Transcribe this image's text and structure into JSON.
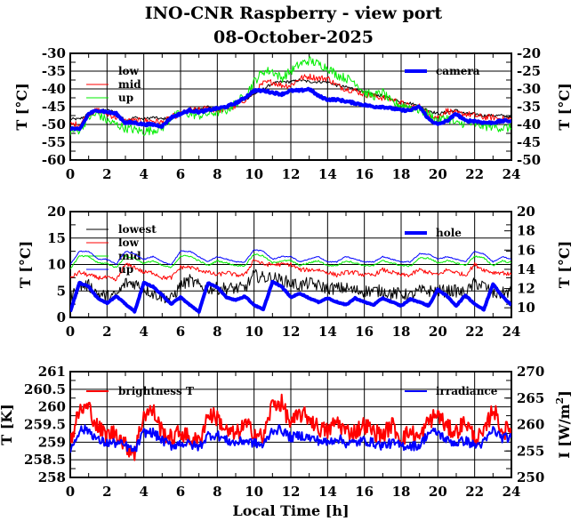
{
  "title": "INO-CNR Raspberry - view port",
  "subtitle": "08-October-2025",
  "chart_data": [
    {
      "type": "line",
      "ylabel": "T [°C]",
      "ylabel_right": "T [°C]",
      "ylim": [
        -60,
        -30
      ],
      "ylim_right": [
        -50,
        -20
      ],
      "yticks": [
        -60,
        -55,
        -50,
        -45,
        -40,
        -35,
        -30
      ],
      "yticks_right": [
        -50,
        -45,
        -40,
        -35,
        -30,
        -25,
        -20
      ],
      "xlim": [
        0,
        24
      ],
      "xticks": [
        0,
        2,
        4,
        6,
        8,
        10,
        12,
        14,
        16,
        18,
        20,
        22,
        24
      ],
      "x_step": 0.5,
      "grid": true,
      "series": [
        {
          "name": "low",
          "axis": "left",
          "color": "#000000",
          "width": 1,
          "noise": 0.4,
          "values": [
            -48.5,
            -48.5,
            -47,
            -46,
            -46,
            -46.5,
            -49,
            -48,
            -48.5,
            -48,
            -48.5,
            -48,
            -47,
            -46,
            -45.5,
            -45,
            -46,
            -45,
            -44.5,
            -43,
            -41.5,
            -40,
            -38.5,
            -38,
            -38,
            -37.5,
            -38,
            -38,
            -38,
            -39,
            -39.5,
            -40,
            -41,
            -41.5,
            -42,
            -43,
            -43.5,
            -44,
            -45,
            -46,
            -47,
            -46.5,
            -46,
            -47,
            -47,
            -47.5,
            -47.5,
            -47.5,
            -48
          ]
        },
        {
          "name": "mid",
          "axis": "left",
          "color": "#ff0000",
          "width": 1,
          "noise": 0.9,
          "values": [
            -50,
            -50,
            -47,
            -46,
            -47,
            -48,
            -49,
            -49,
            -49,
            -49,
            -49.5,
            -48,
            -47,
            -46,
            -46,
            -45.5,
            -46,
            -45.5,
            -45,
            -43,
            -41,
            -38.5,
            -38,
            -39,
            -39,
            -37,
            -36.5,
            -37,
            -37,
            -39,
            -40,
            -40.5,
            -41.5,
            -42,
            -42.5,
            -43,
            -44,
            -45,
            -45,
            -47,
            -48,
            -46,
            -47,
            -47,
            -47.5,
            -48,
            -48,
            -48.5,
            -48.5
          ]
        },
        {
          "name": "up",
          "axis": "left",
          "color": "#00ee00",
          "width": 1,
          "noise": 1.3,
          "values": [
            -52,
            -51.5,
            -48,
            -47,
            -49,
            -50,
            -51,
            -51.5,
            -52,
            -51.5,
            -51,
            -48,
            -47,
            -47,
            -47.5,
            -47,
            -46.5,
            -46,
            -44,
            -42,
            -38,
            -35,
            -35,
            -37,
            -35,
            -33,
            -32,
            -33,
            -34,
            -36,
            -37,
            -38,
            -41,
            -42,
            -41,
            -44,
            -44.5,
            -45,
            -46,
            -47,
            -49,
            -48,
            -50,
            -49.5,
            -50,
            -50.5,
            -50.5,
            -51,
            -51
          ]
        },
        {
          "name": "camera",
          "axis": "right",
          "color": "#0000ff",
          "width": 4,
          "noise": 0.3,
          "values": [
            -41,
            -41.5,
            -37,
            -36,
            -36.5,
            -37,
            -39.5,
            -39.5,
            -40,
            -40,
            -40.5,
            -38,
            -37,
            -36,
            -36.5,
            -36,
            -35.5,
            -35,
            -34,
            -32.5,
            -30.5,
            -30.5,
            -31,
            -31.5,
            -30.5,
            -30.5,
            -30,
            -32,
            -33,
            -33,
            -33.5,
            -34,
            -34.5,
            -35,
            -35,
            -35.5,
            -36,
            -36,
            -35,
            -38.5,
            -40,
            -39,
            -37,
            -39,
            -39,
            -39.5,
            -39.5,
            -39,
            -39
          ]
        }
      ]
    },
    {
      "type": "line",
      "ylabel": "T [°C]",
      "ylabel_right": "T [°C]",
      "ylim": [
        0,
        20
      ],
      "ylim_right": [
        9,
        20
      ],
      "yticks": [
        0,
        5,
        10,
        15,
        20
      ],
      "yticks_right": [
        10,
        12,
        14,
        16,
        18,
        20
      ],
      "xlim": [
        0,
        24
      ],
      "xticks": [
        0,
        2,
        4,
        6,
        8,
        10,
        12,
        14,
        16,
        18,
        20,
        22,
        24
      ],
      "x_step": 0.5,
      "grid": true,
      "series": [
        {
          "name": "lowest",
          "axis": "left",
          "color": "#000000",
          "width": 1,
          "noise": 1.2,
          "values": [
            3.5,
            6,
            6,
            4.5,
            4,
            4,
            6.5,
            6.5,
            5.5,
            4.5,
            4,
            3.5,
            6,
            7,
            6,
            5.5,
            5.5,
            5.5,
            5.5,
            5.5,
            8,
            7.5,
            7.5,
            7,
            6.5,
            6,
            6.5,
            6,
            5.5,
            5.5,
            5.5,
            5,
            5,
            5,
            5,
            4.5,
            4.5,
            4,
            5,
            5,
            5,
            5,
            5,
            4.5,
            6.5,
            6,
            4.5,
            4.5,
            5
          ]
        },
        {
          "name": "low",
          "axis": "left",
          "color": "#ff0000",
          "width": 1,
          "noise": 0.4,
          "values": [
            7.5,
            8.5,
            8,
            7.5,
            7.5,
            7,
            10,
            9.5,
            8.5,
            8.5,
            7.5,
            7.5,
            9.5,
            9.5,
            9,
            8.5,
            8,
            8.5,
            8,
            8,
            11,
            10,
            10,
            10,
            10,
            9,
            9,
            9,
            8.5,
            8,
            8.5,
            8.5,
            8,
            8,
            9,
            8.5,
            8,
            8,
            9,
            8.5,
            8,
            9,
            8.5,
            8,
            10,
            9,
            8.5,
            8.5,
            8
          ]
        },
        {
          "name": "mid",
          "axis": "left",
          "color": "#00ee00",
          "width": 1,
          "noise": 0.15,
          "values": [
            9.2,
            11.6,
            11.5,
            10.3,
            10.2,
            9.4,
            11.6,
            11.2,
            10.2,
            10.7,
            9.8,
            9.4,
            11.6,
            11.6,
            10.7,
            9.8,
            10.7,
            10.3,
            9.8,
            9.8,
            12,
            11.6,
            10.3,
            10.7,
            10.7,
            9.8,
            10.3,
            10.7,
            9.8,
            9.8,
            10.7,
            10.3,
            9.8,
            9.8,
            10.7,
            10.3,
            9.8,
            9.7,
            11.2,
            11.2,
            10.3,
            10.7,
            10.3,
            9.8,
            11.6,
            11.2,
            9.8,
            10.7,
            10.3
          ]
        },
        {
          "name": "up",
          "axis": "left",
          "color": "#0000ff",
          "width": 1,
          "noise": 0.1,
          "values": [
            10,
            12.5,
            12.5,
            11,
            11,
            10,
            12.5,
            12,
            11,
            11.5,
            10.5,
            10,
            12.5,
            12.5,
            11.5,
            10.5,
            11.5,
            11,
            10.5,
            10.5,
            12.8,
            12.5,
            11,
            11.5,
            11.5,
            10.5,
            11,
            11.5,
            10.5,
            10.5,
            11.5,
            11,
            10.5,
            10.5,
            11.5,
            11,
            10.5,
            10.5,
            12,
            12,
            11,
            11.5,
            11,
            10.5,
            12.5,
            12,
            10.5,
            11.5,
            11
          ]
        },
        {
          "name": "hole",
          "axis": "right",
          "color": "#0000ff",
          "width": 4,
          "noise": 0.05,
          "values": [
            9.6,
            12.6,
            12.2,
            11,
            10.5,
            11.2,
            10.4,
            9.6,
            12.6,
            12.2,
            11.3,
            10.4,
            11.1,
            10.3,
            9.6,
            12.6,
            12.1,
            11.1,
            10.8,
            11.2,
            10.3,
            9.8,
            12.7,
            12.2,
            11.1,
            11.5,
            11,
            10.6,
            11,
            10.6,
            10.3,
            11,
            10.6,
            10.3,
            11,
            10.6,
            10.2,
            10.9,
            10.6,
            10.2,
            11.9,
            11.2,
            10.2,
            11.3,
            10.4,
            9.8,
            12.5,
            11.2,
            10.3
          ]
        }
      ]
    },
    {
      "type": "line",
      "xlabel": "Local Time [h]",
      "ylabel": "T [K]",
      "ylabel_right": "I [W/m",
      "ylabel_right_sup": "2",
      "ylabel_right_end": "]",
      "ylim": [
        258,
        261
      ],
      "ylim_right": [
        250,
        270
      ],
      "yticks": [
        258,
        258.5,
        259,
        259.5,
        260,
        260.5,
        261
      ],
      "yticks_right": [
        250,
        255,
        260,
        265,
        270
      ],
      "xlim": [
        0,
        24
      ],
      "xticks": [
        0,
        2,
        4,
        6,
        8,
        10,
        12,
        14,
        16,
        18,
        20,
        22,
        24
      ],
      "x_step": 0.5,
      "grid": true,
      "series": [
        {
          "name": "brightness T",
          "axis": "left",
          "color": "#ff0000",
          "width": 2,
          "noise": 0.25,
          "values": [
            259,
            259.9,
            260,
            259.4,
            259.2,
            259.3,
            258.9,
            258.7,
            259.8,
            259.9,
            259.3,
            259.1,
            259.3,
            259.1,
            259,
            259.8,
            259.7,
            259.3,
            259.2,
            259.5,
            259.3,
            259.1,
            260.1,
            260.1,
            259.5,
            259.8,
            259.7,
            259.4,
            259.3,
            259.6,
            259.3,
            259.3,
            259.5,
            259.3,
            259.2,
            259.5,
            259.1,
            259.3,
            259.1,
            259.6,
            259.8,
            259.4,
            259.3,
            259.6,
            259.1,
            259.2,
            260,
            259.3,
            259.4
          ]
        },
        {
          "name": "irradiance",
          "axis": "right",
          "color": "#0000ff",
          "width": 2,
          "noise": 0.9,
          "values": [
            255,
            259,
            259,
            257,
            256.5,
            256.5,
            256,
            255,
            258.5,
            258.5,
            257,
            256,
            256.5,
            256.3,
            255.7,
            258,
            258,
            257,
            256.5,
            257,
            256.5,
            256,
            259,
            259,
            257.5,
            258,
            257.5,
            257,
            256.5,
            257.5,
            256.5,
            256.5,
            257,
            256.5,
            256,
            256.5,
            256,
            256,
            256,
            258.5,
            258.5,
            257,
            256.5,
            257,
            256,
            256.5,
            259,
            257.5,
            257.5
          ]
        }
      ]
    }
  ]
}
